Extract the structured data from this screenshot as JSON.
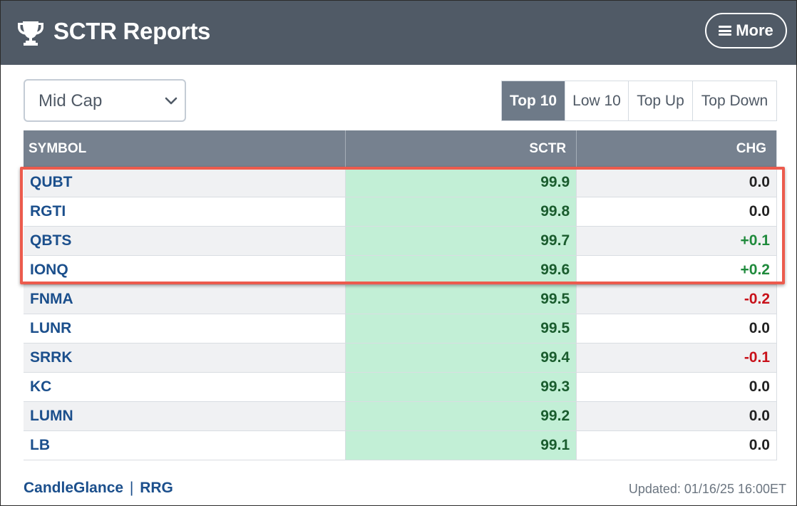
{
  "header": {
    "title": "SCTR Reports",
    "more_label": "More"
  },
  "filter": {
    "selected": "Mid Cap"
  },
  "tabs": [
    {
      "label": "Top 10",
      "active": true
    },
    {
      "label": "Low 10",
      "active": false
    },
    {
      "label": "Top Up",
      "active": false
    },
    {
      "label": "Top Down",
      "active": false
    }
  ],
  "table": {
    "columns": [
      "SYMBOL",
      "SCTR",
      "CHG"
    ],
    "rows": [
      {
        "symbol": "QUBT",
        "sctr": "99.9",
        "chg": "0.0"
      },
      {
        "symbol": "RGTI",
        "sctr": "99.8",
        "chg": "0.0"
      },
      {
        "symbol": "QBTS",
        "sctr": "99.7",
        "chg": "+0.1"
      },
      {
        "symbol": "IONQ",
        "sctr": "99.6",
        "chg": "+0.2"
      },
      {
        "symbol": "FNMA",
        "sctr": "99.5",
        "chg": "-0.2"
      },
      {
        "symbol": "LUNR",
        "sctr": "99.5",
        "chg": "0.0"
      },
      {
        "symbol": "SRRK",
        "sctr": "99.4",
        "chg": "-0.1"
      },
      {
        "symbol": "KC",
        "sctr": "99.3",
        "chg": "0.0"
      },
      {
        "symbol": "LUMN",
        "sctr": "99.2",
        "chg": "0.0"
      },
      {
        "symbol": "LB",
        "sctr": "99.1",
        "chg": "0.0"
      }
    ]
  },
  "footer": {
    "link1": "CandleGlance",
    "separator": "|",
    "link2": "RRG",
    "updated": "Updated: 01/16/25 16:00ET"
  },
  "colors": {
    "header_bg": "#505a66",
    "table_header_bg": "#76818f",
    "sctr_cell_bg": "#c2efd6",
    "positive": "#1f8a3c",
    "negative": "#c8111a",
    "highlight_border": "#ec5b4d",
    "link": "#1b4f8c"
  },
  "icons": {
    "logo": "trophy-icon",
    "menu": "hamburger-icon",
    "dropdown": "chevron-down-icon"
  }
}
